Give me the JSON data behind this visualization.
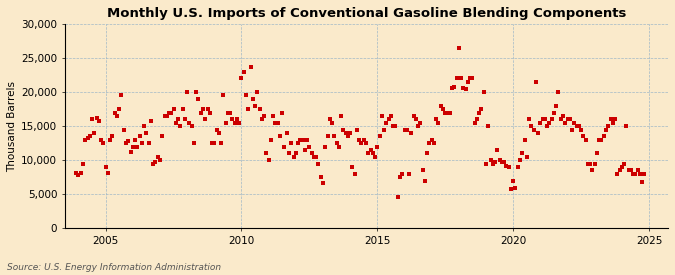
{
  "title": "Monthly U.S. Imports of Conventional Gasoline Blending Components",
  "ylabel": "Thousand Barrels",
  "source": "Source: U.S. Energy Information Administration",
  "background_color": "#faeacb",
  "plot_bg_color": "#faeacb",
  "marker_color": "#cc0000",
  "marker": "s",
  "marker_size": 2.8,
  "ylim": [
    0,
    30000
  ],
  "yticks": [
    0,
    5000,
    10000,
    15000,
    20000,
    25000,
    30000
  ],
  "xlim_start": 2003.5,
  "xlim_end": 2025.7,
  "xticks": [
    2005,
    2010,
    2015,
    2020,
    2025
  ],
  "data": [
    [
      2003.917,
      8200
    ],
    [
      2004.0,
      7800
    ],
    [
      2004.083,
      8100
    ],
    [
      2004.167,
      9500
    ],
    [
      2004.25,
      13000
    ],
    [
      2004.333,
      13200
    ],
    [
      2004.417,
      13500
    ],
    [
      2004.5,
      16000
    ],
    [
      2004.583,
      14000
    ],
    [
      2004.667,
      16200
    ],
    [
      2004.75,
      15800
    ],
    [
      2004.833,
      13000
    ],
    [
      2004.917,
      12500
    ],
    [
      2005.0,
      9000
    ],
    [
      2005.083,
      8200
    ],
    [
      2005.167,
      13000
    ],
    [
      2005.25,
      13500
    ],
    [
      2005.333,
      17000
    ],
    [
      2005.417,
      16500
    ],
    [
      2005.5,
      17500
    ],
    [
      2005.583,
      19500
    ],
    [
      2005.667,
      14500
    ],
    [
      2005.75,
      12500
    ],
    [
      2005.833,
      12800
    ],
    [
      2005.917,
      11200
    ],
    [
      2006.0,
      12000
    ],
    [
      2006.083,
      13000
    ],
    [
      2006.167,
      12000
    ],
    [
      2006.25,
      13500
    ],
    [
      2006.333,
      12500
    ],
    [
      2006.417,
      15000
    ],
    [
      2006.5,
      14000
    ],
    [
      2006.583,
      12500
    ],
    [
      2006.667,
      15800
    ],
    [
      2006.75,
      9500
    ],
    [
      2006.833,
      9800
    ],
    [
      2006.917,
      10500
    ],
    [
      2007.0,
      10000
    ],
    [
      2007.083,
      13500
    ],
    [
      2007.167,
      16500
    ],
    [
      2007.25,
      16500
    ],
    [
      2007.333,
      17000
    ],
    [
      2007.417,
      17000
    ],
    [
      2007.5,
      17500
    ],
    [
      2007.583,
      15500
    ],
    [
      2007.667,
      16000
    ],
    [
      2007.75,
      15000
    ],
    [
      2007.833,
      17500
    ],
    [
      2007.917,
      16000
    ],
    [
      2008.0,
      20000
    ],
    [
      2008.083,
      15500
    ],
    [
      2008.167,
      15000
    ],
    [
      2008.25,
      12500
    ],
    [
      2008.333,
      20000
    ],
    [
      2008.417,
      19000
    ],
    [
      2008.5,
      17000
    ],
    [
      2008.583,
      17500
    ],
    [
      2008.667,
      16000
    ],
    [
      2008.75,
      17500
    ],
    [
      2008.833,
      17000
    ],
    [
      2008.917,
      12500
    ],
    [
      2009.0,
      12500
    ],
    [
      2009.083,
      14500
    ],
    [
      2009.167,
      14000
    ],
    [
      2009.25,
      12500
    ],
    [
      2009.333,
      19500
    ],
    [
      2009.417,
      15500
    ],
    [
      2009.5,
      17000
    ],
    [
      2009.583,
      17000
    ],
    [
      2009.667,
      16000
    ],
    [
      2009.75,
      15500
    ],
    [
      2009.833,
      16000
    ],
    [
      2009.917,
      15500
    ],
    [
      2010.0,
      22000
    ],
    [
      2010.083,
      23000
    ],
    [
      2010.167,
      19500
    ],
    [
      2010.25,
      17500
    ],
    [
      2010.333,
      23700
    ],
    [
      2010.417,
      19000
    ],
    [
      2010.5,
      18000
    ],
    [
      2010.583,
      20000
    ],
    [
      2010.667,
      17500
    ],
    [
      2010.75,
      16000
    ],
    [
      2010.833,
      16500
    ],
    [
      2010.917,
      11000
    ],
    [
      2011.0,
      10000
    ],
    [
      2011.083,
      13000
    ],
    [
      2011.167,
      16500
    ],
    [
      2011.25,
      15500
    ],
    [
      2011.333,
      15500
    ],
    [
      2011.417,
      13500
    ],
    [
      2011.5,
      17000
    ],
    [
      2011.583,
      12000
    ],
    [
      2011.667,
      14000
    ],
    [
      2011.75,
      11000
    ],
    [
      2011.833,
      12500
    ],
    [
      2011.917,
      10500
    ],
    [
      2012.0,
      11000
    ],
    [
      2012.083,
      12500
    ],
    [
      2012.167,
      13000
    ],
    [
      2012.25,
      13000
    ],
    [
      2012.333,
      11500
    ],
    [
      2012.417,
      13000
    ],
    [
      2012.5,
      12000
    ],
    [
      2012.583,
      11000
    ],
    [
      2012.667,
      10500
    ],
    [
      2012.75,
      10500
    ],
    [
      2012.833,
      9500
    ],
    [
      2012.917,
      7500
    ],
    [
      2013.0,
      6700
    ],
    [
      2013.083,
      12000
    ],
    [
      2013.167,
      13500
    ],
    [
      2013.25,
      16000
    ],
    [
      2013.333,
      15500
    ],
    [
      2013.417,
      13500
    ],
    [
      2013.5,
      12500
    ],
    [
      2013.583,
      12000
    ],
    [
      2013.667,
      16500
    ],
    [
      2013.75,
      14500
    ],
    [
      2013.833,
      14000
    ],
    [
      2013.917,
      13500
    ],
    [
      2014.0,
      14000
    ],
    [
      2014.083,
      9000
    ],
    [
      2014.167,
      8000
    ],
    [
      2014.25,
      14500
    ],
    [
      2014.333,
      13000
    ],
    [
      2014.417,
      12500
    ],
    [
      2014.5,
      13000
    ],
    [
      2014.583,
      12500
    ],
    [
      2014.667,
      11000
    ],
    [
      2014.75,
      11500
    ],
    [
      2014.833,
      11000
    ],
    [
      2014.917,
      10500
    ],
    [
      2015.0,
      12000
    ],
    [
      2015.083,
      13500
    ],
    [
      2015.167,
      16500
    ],
    [
      2015.25,
      14500
    ],
    [
      2015.333,
      15500
    ],
    [
      2015.417,
      16000
    ],
    [
      2015.5,
      16500
    ],
    [
      2015.583,
      15000
    ],
    [
      2015.667,
      15000
    ],
    [
      2015.75,
      4600
    ],
    [
      2015.833,
      7500
    ],
    [
      2015.917,
      8000
    ],
    [
      2016.0,
      14500
    ],
    [
      2016.083,
      14500
    ],
    [
      2016.167,
      8000
    ],
    [
      2016.25,
      14000
    ],
    [
      2016.333,
      16500
    ],
    [
      2016.417,
      16000
    ],
    [
      2016.5,
      15000
    ],
    [
      2016.583,
      15500
    ],
    [
      2016.667,
      8500
    ],
    [
      2016.75,
      7000
    ],
    [
      2016.833,
      11000
    ],
    [
      2016.917,
      12500
    ],
    [
      2017.0,
      13000
    ],
    [
      2017.083,
      12500
    ],
    [
      2017.167,
      16000
    ],
    [
      2017.25,
      15500
    ],
    [
      2017.333,
      18000
    ],
    [
      2017.417,
      17500
    ],
    [
      2017.5,
      17000
    ],
    [
      2017.583,
      17000
    ],
    [
      2017.667,
      17000
    ],
    [
      2017.75,
      20600
    ],
    [
      2017.833,
      20800
    ],
    [
      2017.917,
      22000
    ],
    [
      2018.0,
      26500
    ],
    [
      2018.083,
      22000
    ],
    [
      2018.167,
      20600
    ],
    [
      2018.25,
      20500
    ],
    [
      2018.333,
      21500
    ],
    [
      2018.417,
      22000
    ],
    [
      2018.5,
      22000
    ],
    [
      2018.583,
      15500
    ],
    [
      2018.667,
      16000
    ],
    [
      2018.75,
      17000
    ],
    [
      2018.833,
      17500
    ],
    [
      2018.917,
      20000
    ],
    [
      2019.0,
      9500
    ],
    [
      2019.083,
      15000
    ],
    [
      2019.167,
      10000
    ],
    [
      2019.25,
      9500
    ],
    [
      2019.333,
      9700
    ],
    [
      2019.417,
      11500
    ],
    [
      2019.5,
      10000
    ],
    [
      2019.583,
      9800
    ],
    [
      2019.667,
      9800
    ],
    [
      2019.75,
      9200
    ],
    [
      2019.833,
      9000
    ],
    [
      2019.917,
      5800
    ],
    [
      2020.0,
      7000
    ],
    [
      2020.083,
      6000
    ],
    [
      2020.167,
      9000
    ],
    [
      2020.25,
      10000
    ],
    [
      2020.333,
      11000
    ],
    [
      2020.417,
      13000
    ],
    [
      2020.5,
      10500
    ],
    [
      2020.583,
      16000
    ],
    [
      2020.667,
      15000
    ],
    [
      2020.75,
      14500
    ],
    [
      2020.833,
      21500
    ],
    [
      2020.917,
      14000
    ],
    [
      2021.0,
      15500
    ],
    [
      2021.083,
      16000
    ],
    [
      2021.167,
      16000
    ],
    [
      2021.25,
      15000
    ],
    [
      2021.333,
      15500
    ],
    [
      2021.417,
      16000
    ],
    [
      2021.5,
      17000
    ],
    [
      2021.583,
      18000
    ],
    [
      2021.667,
      20000
    ],
    [
      2021.75,
      16000
    ],
    [
      2021.833,
      16500
    ],
    [
      2021.917,
      15500
    ],
    [
      2022.0,
      16000
    ],
    [
      2022.083,
      16000
    ],
    [
      2022.167,
      14500
    ],
    [
      2022.25,
      15500
    ],
    [
      2022.333,
      15000
    ],
    [
      2022.417,
      15000
    ],
    [
      2022.5,
      14500
    ],
    [
      2022.583,
      13500
    ],
    [
      2022.667,
      13000
    ],
    [
      2022.75,
      9500
    ],
    [
      2022.833,
      9500
    ],
    [
      2022.917,
      8500
    ],
    [
      2023.0,
      9500
    ],
    [
      2023.083,
      11000
    ],
    [
      2023.167,
      13000
    ],
    [
      2023.25,
      13000
    ],
    [
      2023.333,
      13500
    ],
    [
      2023.417,
      14500
    ],
    [
      2023.5,
      15000
    ],
    [
      2023.583,
      16000
    ],
    [
      2023.667,
      15500
    ],
    [
      2023.75,
      16000
    ],
    [
      2023.833,
      8000
    ],
    [
      2023.917,
      8500
    ],
    [
      2024.0,
      9000
    ],
    [
      2024.083,
      9500
    ],
    [
      2024.167,
      15000
    ],
    [
      2024.25,
      8500
    ],
    [
      2024.333,
      8500
    ],
    [
      2024.417,
      8000
    ],
    [
      2024.5,
      8000
    ],
    [
      2024.583,
      8500
    ],
    [
      2024.667,
      8000
    ],
    [
      2024.75,
      6800
    ],
    [
      2024.833,
      8000
    ]
  ]
}
